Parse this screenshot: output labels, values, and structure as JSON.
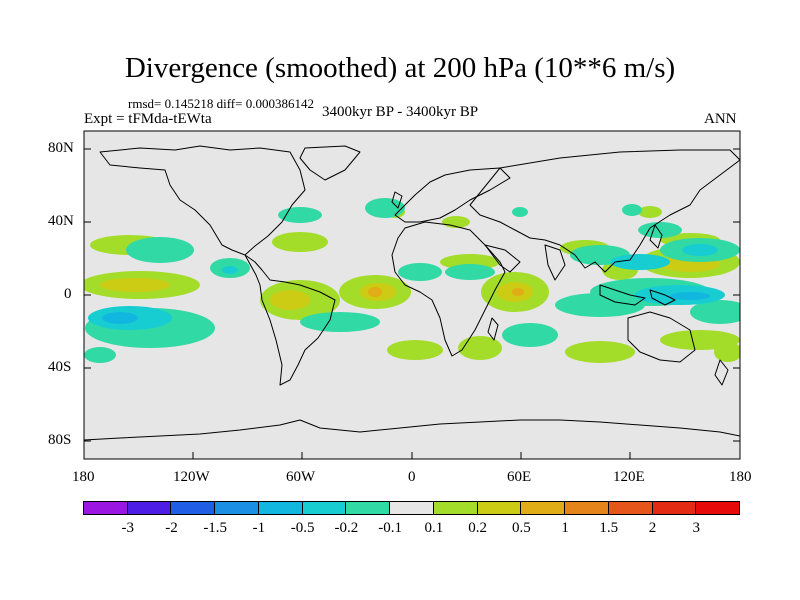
{
  "title": "Divergence (smoothed) at 200 hPa (10**6 m/s)",
  "stats": "rmsd= 0.145218 diff= 0.000386142",
  "experiment": "Expt = tFMda-tEWta",
  "period": "3400kyr BP - 3400kyr BP",
  "season": "ANN",
  "lat_labels": [
    "80N",
    "40N",
    "0",
    "40S",
    "80S"
  ],
  "lon_labels": [
    "180",
    "120W",
    "60W",
    "0",
    "60E",
    "120E",
    "180"
  ],
  "colorbar": {
    "labels": [
      "-3",
      "-2",
      "-1.5",
      "-1",
      "-0.5",
      "-0.2",
      "-0.1",
      "0.1",
      "0.2",
      "0.5",
      "1",
      "1.5",
      "2",
      "3"
    ],
    "colors": [
      "#9b16e0",
      "#4c1ee6",
      "#1f5ee5",
      "#1a8fe3",
      "#12b7e0",
      "#17cdd2",
      "#31d9a5",
      "#e6e6e6",
      "#a4dc2a",
      "#cccc14",
      "#e0ad16",
      "#e5841b",
      "#e6561a",
      "#e32a12",
      "#e60a0a"
    ]
  },
  "colors": {
    "land_ocean": "#e6e6e6",
    "coast": "#000000"
  }
}
